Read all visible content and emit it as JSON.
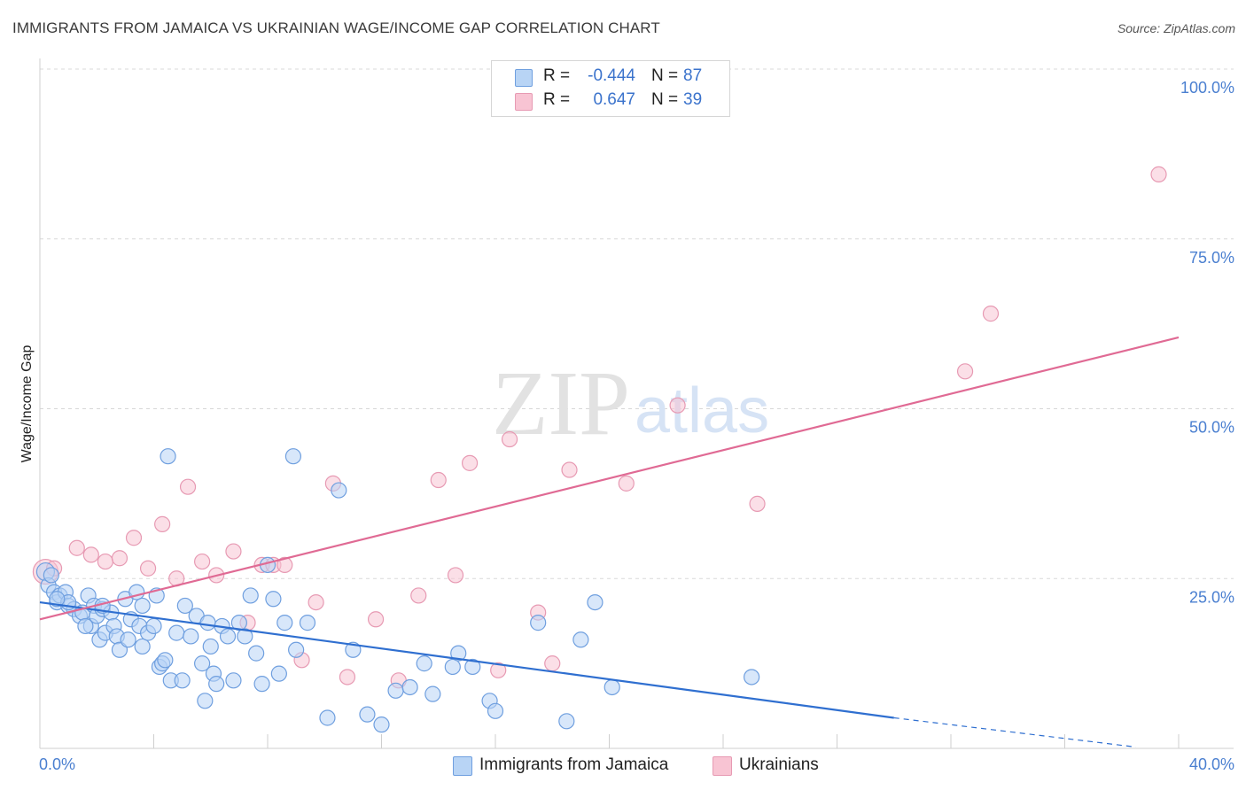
{
  "header": {
    "title": "IMMIGRANTS FROM JAMAICA VS UKRAINIAN WAGE/INCOME GAP CORRELATION CHART",
    "source": "Source: ZipAtlas.com"
  },
  "watermark": {
    "zip": "ZIP",
    "atlas": "atlas"
  },
  "colors": {
    "blue_fill": "#b8d4f5",
    "blue_stroke": "#6f9fdf",
    "blue_line": "#2f6fd0",
    "pink_fill": "#f8c4d3",
    "pink_stroke": "#e79ab3",
    "pink_line": "#e06a94",
    "tick_text": "#4a7fd0",
    "grid": "#d8d8d8"
  },
  "legend": {
    "rows": [
      {
        "r_label": "R =",
        "r_value": "-0.444",
        "n_label": "N =",
        "n_value": "87",
        "color": "#b8d4f5"
      },
      {
        "r_label": "R =",
        "r_value": "0.647",
        "n_label": "N =",
        "n_value": "39",
        "color": "#f8c4d3"
      }
    ]
  },
  "bottom_legend": [
    {
      "label": "Immigrants from Jamaica",
      "color": "#b8d4f5"
    },
    {
      "label": "Ukrainians",
      "color": "#f8c4d3"
    }
  ],
  "chart_data": {
    "type": "scatter",
    "title": "IMMIGRANTS FROM JAMAICA VS UKRAINIAN WAGE/INCOME GAP CORRELATION CHART",
    "xlabel": "",
    "ylabel": "Wage/Income Gap",
    "xlim": [
      0,
      40
    ],
    "ylim": [
      0,
      100
    ],
    "x_tick_labels": [
      "0.0%",
      "40.0%"
    ],
    "y_ticks": [
      25,
      50,
      75,
      100
    ],
    "y_tick_labels": [
      "25.0%",
      "50.0%",
      "75.0%",
      "100.0%"
    ],
    "grid": "horizontal dashed",
    "legend_position": "top-center",
    "series": [
      {
        "name": "Immigrants from Jamaica",
        "trend": {
          "x0": 0,
          "y0": 21.5,
          "x1": 30,
          "y1": 4.5,
          "dashed_to_x": 38.5,
          "dashed_to_y": 0.2
        },
        "points": [
          [
            0.2,
            26.0
          ],
          [
            0.3,
            24.0
          ],
          [
            0.5,
            23.0
          ],
          [
            0.6,
            21.5
          ],
          [
            0.7,
            22.5
          ],
          [
            0.9,
            23.0
          ],
          [
            1.0,
            21.0
          ],
          [
            1.2,
            20.5
          ],
          [
            1.4,
            19.5
          ],
          [
            1.5,
            20.0
          ],
          [
            1.7,
            22.5
          ],
          [
            1.8,
            18.0
          ],
          [
            1.9,
            21.0
          ],
          [
            2.0,
            19.5
          ],
          [
            2.1,
            16.0
          ],
          [
            2.2,
            20.5
          ],
          [
            2.3,
            17.0
          ],
          [
            2.5,
            20.0
          ],
          [
            2.6,
            18.0
          ],
          [
            2.7,
            16.5
          ],
          [
            2.8,
            14.5
          ],
          [
            3.0,
            22.0
          ],
          [
            3.1,
            16.0
          ],
          [
            3.2,
            19.0
          ],
          [
            3.4,
            23.0
          ],
          [
            3.5,
            18.0
          ],
          [
            3.6,
            15.0
          ],
          [
            3.8,
            17.0
          ],
          [
            4.0,
            18.0
          ],
          [
            4.1,
            22.5
          ],
          [
            4.2,
            12.0
          ],
          [
            4.3,
            12.5
          ],
          [
            4.4,
            13.0
          ],
          [
            4.6,
            10.0
          ],
          [
            4.8,
            17.0
          ],
          [
            5.0,
            10.0
          ],
          [
            5.1,
            21.0
          ],
          [
            5.3,
            16.5
          ],
          [
            5.5,
            19.5
          ],
          [
            5.7,
            12.5
          ],
          [
            5.8,
            7.0
          ],
          [
            5.9,
            18.5
          ],
          [
            6.0,
            15.0
          ],
          [
            6.1,
            11.0
          ],
          [
            6.2,
            9.5
          ],
          [
            6.4,
            18.0
          ],
          [
            6.6,
            16.5
          ],
          [
            6.8,
            10.0
          ],
          [
            7.0,
            18.5
          ],
          [
            7.2,
            16.5
          ],
          [
            7.4,
            22.5
          ],
          [
            7.6,
            14.0
          ],
          [
            7.8,
            9.5
          ],
          [
            8.0,
            27.0
          ],
          [
            8.2,
            22.0
          ],
          [
            8.4,
            11.0
          ],
          [
            8.6,
            18.5
          ],
          [
            9.0,
            14.5
          ],
          [
            9.4,
            18.5
          ],
          [
            10.1,
            4.5
          ],
          [
            11.0,
            14.5
          ],
          [
            11.5,
            5.0
          ],
          [
            12.0,
            3.5
          ],
          [
            12.5,
            8.5
          ],
          [
            13.0,
            9.0
          ],
          [
            13.5,
            12.5
          ],
          [
            13.8,
            8.0
          ],
          [
            14.5,
            12.0
          ],
          [
            14.7,
            14.0
          ],
          [
            15.2,
            12.0
          ],
          [
            15.8,
            7.0
          ],
          [
            16.0,
            5.5
          ],
          [
            17.5,
            18.5
          ],
          [
            18.5,
            4.0
          ],
          [
            19.0,
            16.0
          ],
          [
            19.5,
            21.5
          ],
          [
            20.1,
            9.0
          ],
          [
            25.0,
            10.5
          ],
          [
            1.0,
            21.5
          ],
          [
            0.6,
            22.0
          ],
          [
            0.4,
            25.5
          ],
          [
            2.2,
            21.0
          ],
          [
            1.6,
            18.0
          ],
          [
            4.5,
            43.0
          ],
          [
            8.9,
            43.0
          ],
          [
            10.5,
            38.0
          ],
          [
            3.6,
            21.0
          ]
        ]
      },
      {
        "name": "Ukrainians",
        "trend": {
          "x0": 0,
          "y0": 19.0,
          "x1": 40,
          "y1": 60.5
        },
        "points": [
          [
            0.2,
            26.0
          ],
          [
            0.5,
            26.5
          ],
          [
            1.3,
            29.5
          ],
          [
            1.8,
            28.5
          ],
          [
            2.3,
            27.5
          ],
          [
            2.8,
            28.0
          ],
          [
            3.3,
            31.0
          ],
          [
            3.8,
            26.5
          ],
          [
            4.3,
            33.0
          ],
          [
            4.8,
            25.0
          ],
          [
            5.2,
            38.5
          ],
          [
            5.7,
            27.5
          ],
          [
            6.2,
            25.5
          ],
          [
            6.8,
            29.0
          ],
          [
            7.3,
            18.5
          ],
          [
            7.8,
            27.0
          ],
          [
            8.2,
            27.0
          ],
          [
            8.6,
            27.0
          ],
          [
            9.2,
            13.0
          ],
          [
            9.7,
            21.5
          ],
          [
            10.3,
            39.0
          ],
          [
            10.8,
            10.5
          ],
          [
            11.8,
            19.0
          ],
          [
            12.6,
            10.0
          ],
          [
            13.3,
            22.5
          ],
          [
            14.0,
            39.5
          ],
          [
            14.6,
            25.5
          ],
          [
            15.1,
            42.0
          ],
          [
            16.1,
            11.5
          ],
          [
            16.5,
            45.5
          ],
          [
            17.5,
            20.0
          ],
          [
            18.0,
            12.5
          ],
          [
            18.6,
            41.0
          ],
          [
            20.6,
            39.0
          ],
          [
            22.4,
            50.5
          ],
          [
            25.2,
            36.0
          ],
          [
            32.5,
            55.5
          ],
          [
            33.4,
            64.0
          ],
          [
            39.3,
            84.5
          ]
        ]
      }
    ]
  }
}
